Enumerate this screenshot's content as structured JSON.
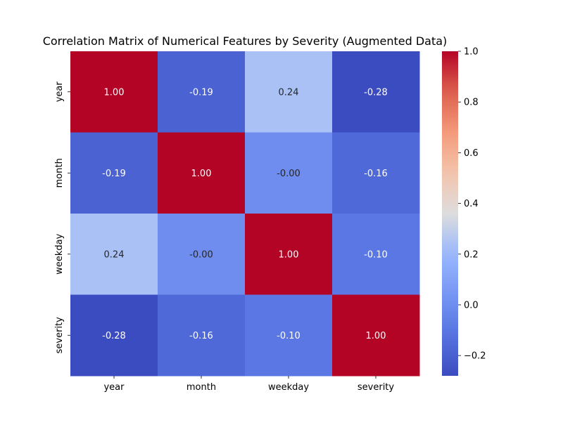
{
  "chart_data": {
    "type": "heatmap",
    "title": "Correlation Matrix of Numerical Features by Severity (Augmented Data)",
    "xlabel": "",
    "ylabel": "",
    "x_categories": [
      "year",
      "month",
      "weekday",
      "severity"
    ],
    "y_categories": [
      "year",
      "month",
      "weekday",
      "severity"
    ],
    "values": [
      [
        1.0,
        -0.19,
        0.24,
        -0.28
      ],
      [
        -0.19,
        1.0,
        -0.0,
        -0.16
      ],
      [
        0.24,
        -0.0,
        1.0,
        -0.1
      ],
      [
        -0.28,
        -0.16,
        -0.1,
        1.0
      ]
    ],
    "annotations": [
      [
        "1.00",
        "-0.19",
        "0.24",
        "-0.28"
      ],
      [
        "-0.19",
        "1.00",
        "-0.00",
        "-0.16"
      ],
      [
        "0.24",
        "-0.00",
        "1.00",
        "-0.10"
      ],
      [
        "-0.28",
        "-0.16",
        "-0.10",
        "1.00"
      ]
    ],
    "colormap": "coolwarm",
    "color_range": [
      -0.28,
      1.0
    ],
    "colorbar": {
      "ticks": [
        -0.2,
        0.0,
        0.2,
        0.4,
        0.6,
        0.8,
        1.0
      ],
      "tick_labels": [
        "−0.2",
        "0.0",
        "0.2",
        "0.4",
        "0.6",
        "0.8",
        "1.0"
      ],
      "placement": "right"
    },
    "grid": false
  }
}
